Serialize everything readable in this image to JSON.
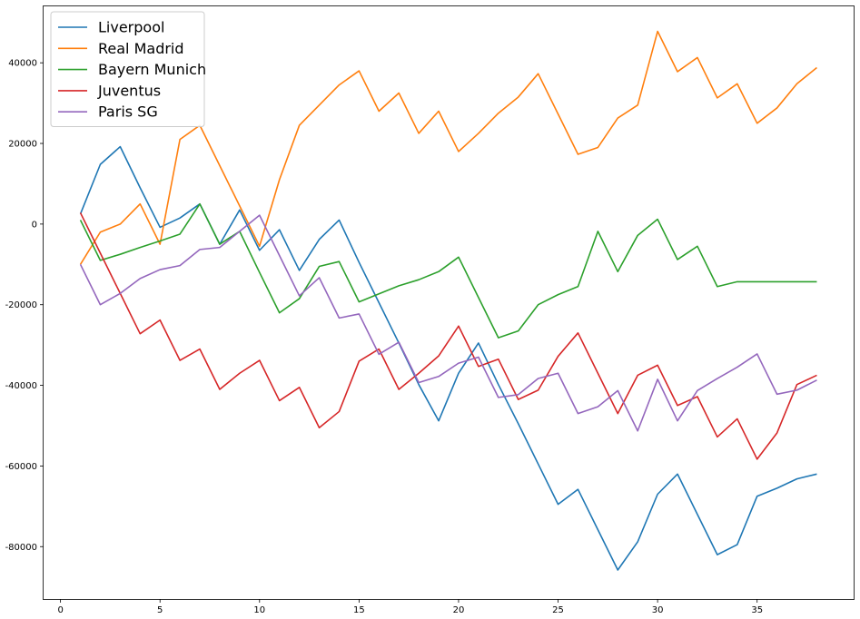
{
  "chart_data": {
    "type": "line",
    "title": "",
    "xlabel": "",
    "ylabel": "",
    "xlim": [
      -0.85,
      39.85
    ],
    "ylim": [
      -93000,
      54000
    ],
    "xticks": [
      0,
      5,
      10,
      15,
      20,
      25,
      30,
      35
    ],
    "yticks": [
      -80000,
      -60000,
      -40000,
      -20000,
      0,
      20000,
      40000
    ],
    "grid": false,
    "legend_position": "top-left",
    "x": [
      1,
      2,
      3,
      4,
      5,
      6,
      7,
      8,
      9,
      10,
      11,
      12,
      13,
      14,
      15,
      16,
      17,
      18,
      19,
      20,
      21,
      22,
      23,
      24,
      25,
      26,
      27,
      28,
      29,
      30,
      31,
      32,
      33,
      34,
      35,
      36,
      37,
      38
    ],
    "series": [
      {
        "name": "Liverpool",
        "color": "#1f77b4",
        "values": [
          2500,
          14800,
          19200,
          9000,
          -800,
          1500,
          5000,
          -5000,
          3500,
          -6500,
          -1400,
          -11500,
          -3800,
          1000,
          -9500,
          -19500,
          -29500,
          -39800,
          -48800,
          -37000,
          -29500,
          -39800,
          -49500,
          -59500,
          -69500,
          -65800,
          -75800,
          -85800,
          -78800,
          -67000,
          -62000,
          -72000,
          -82000,
          -79500,
          -67500,
          -65500,
          -63200,
          -62000
        ]
      },
      {
        "name": "Real Madrid",
        "color": "#ff7f0e",
        "values": [
          -10000,
          -2000,
          0,
          5000,
          -5000,
          21000,
          24500,
          14500,
          4500,
          -5500,
          11000,
          24500,
          29500,
          34500,
          38000,
          28000,
          32500,
          22500,
          28000,
          18000,
          22500,
          27500,
          31500,
          37300,
          27300,
          17300,
          19000,
          26300,
          29500,
          47800,
          37800,
          41300,
          31300,
          34800,
          25000,
          28800,
          34800,
          38800
        ]
      },
      {
        "name": "Bayern Munich",
        "color": "#2ca02c",
        "values": [
          1000,
          -9000,
          -7500,
          -5800,
          -4200,
          -2500,
          5000,
          -5000,
          -1800,
          -12000,
          -22000,
          -18500,
          -10500,
          -9300,
          -19300,
          -17300,
          -15300,
          -13800,
          -11800,
          -8200,
          -18200,
          -28200,
          -26500,
          -20000,
          -17500,
          -15500,
          -1800,
          -11800,
          -2800,
          1200,
          -8800,
          -5500,
          -15500,
          -14300,
          -14300,
          -14300,
          -14300,
          -14300
        ]
      },
      {
        "name": "Juventus",
        "color": "#d62728",
        "values": [
          2800,
          -7200,
          -17200,
          -27200,
          -23800,
          -33800,
          -31000,
          -41000,
          -37000,
          -33800,
          -43800,
          -40500,
          -50500,
          -46500,
          -34000,
          -31000,
          -41000,
          -37000,
          -32700,
          -25300,
          -35300,
          -33500,
          -43500,
          -41200,
          -32800,
          -27000,
          -37000,
          -47000,
          -37500,
          -35000,
          -45000,
          -42800,
          -52800,
          -48300,
          -58300,
          -51800,
          -39800,
          -37500
        ]
      },
      {
        "name": "Paris SG",
        "color": "#9467bd",
        "values": [
          -10000,
          -20000,
          -17200,
          -13500,
          -11300,
          -10300,
          -6300,
          -5800,
          -1800,
          2200,
          -7800,
          -17800,
          -13300,
          -23300,
          -22300,
          -32300,
          -29300,
          -39300,
          -37800,
          -34500,
          -33000,
          -43000,
          -42300,
          -38300,
          -37000,
          -47000,
          -45300,
          -41300,
          -51300,
          -38500,
          -48800,
          -41300,
          -38300,
          -35500,
          -32200,
          -42200,
          -41200,
          -38700
        ]
      }
    ]
  }
}
